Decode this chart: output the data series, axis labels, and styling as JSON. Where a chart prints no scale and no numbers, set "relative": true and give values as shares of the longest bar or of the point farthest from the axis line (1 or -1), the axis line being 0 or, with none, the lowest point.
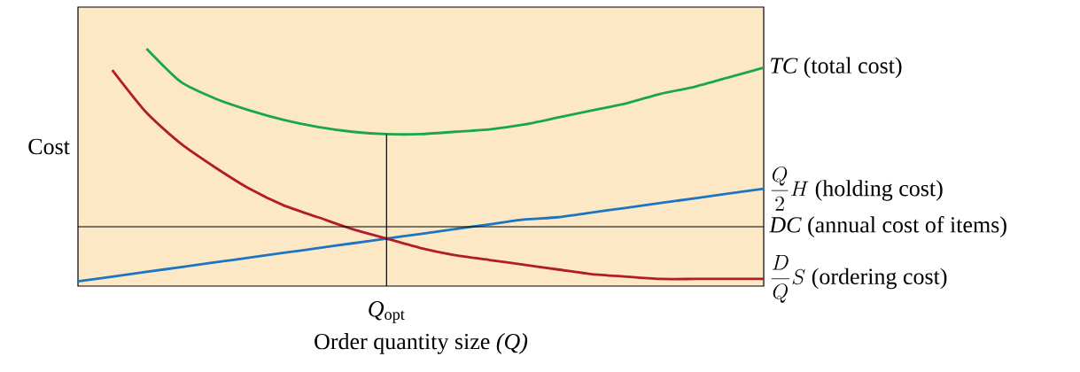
{
  "chart_data": {
    "type": "line",
    "relative": true,
    "xlabel": "Order quantity size *(Q)*",
    "ylabel": "Cost",
    "categories": [
      null,
      null,
      null,
      null,
      null,
      null,
      null,
      null,
      null,
      null,
      null,
      null,
      null,
      null,
      null,
      null,
      null,
      null,
      null,
      null,
      null
    ],
    "annotations": [
      "*Q*$_{opt}$"
    ],
    "series": [
      {
        "name": "\\mathit{TC}\\ \\textrm{(total cost)}",
        "color": "#1aa64a",
        "values": [
          null,
          null,
          1.0,
          0.86,
          0.79,
          0.74,
          0.7,
          0.67,
          0.65,
          0.64,
          0.64,
          0.65,
          0.66,
          0.68,
          0.71,
          0.74,
          0.77,
          0.81,
          0.84,
          0.88,
          0.92
        ]
      },
      {
        "name": "\\frac{Q}{2}H\\ \\textrm{(holding cost)}",
        "color": "#1b75c0",
        "values": [
          0.02,
          0.04,
          0.06,
          0.08,
          0.1,
          0.12,
          0.14,
          0.16,
          0.18,
          0.2,
          0.22,
          0.24,
          0.26,
          0.28,
          0.29,
          0.31,
          0.33,
          0.35,
          0.37,
          0.39,
          0.41
        ]
      },
      {
        "name": "\\frac{D}{Q}S\\ \\textrm{(ordering cost)}",
        "color": "#b01c2a",
        "values": [
          null,
          0.91,
          0.73,
          0.6,
          0.5,
          0.41,
          0.34,
          0.29,
          0.24,
          0.2,
          0.16,
          0.13,
          0.11,
          0.09,
          0.07,
          0.05,
          0.04,
          0.03,
          0.03,
          0.03,
          0.03
        ]
      }
    ],
    "ref_lines": [
      {
        "axis": "y",
        "value": 0.25,
        "label": "\\mathit{DC}\\ \\textrm{(annual cost of items)}",
        "color": "#000000"
      }
    ],
    "legend": false,
    "marker": "none"
  }
}
